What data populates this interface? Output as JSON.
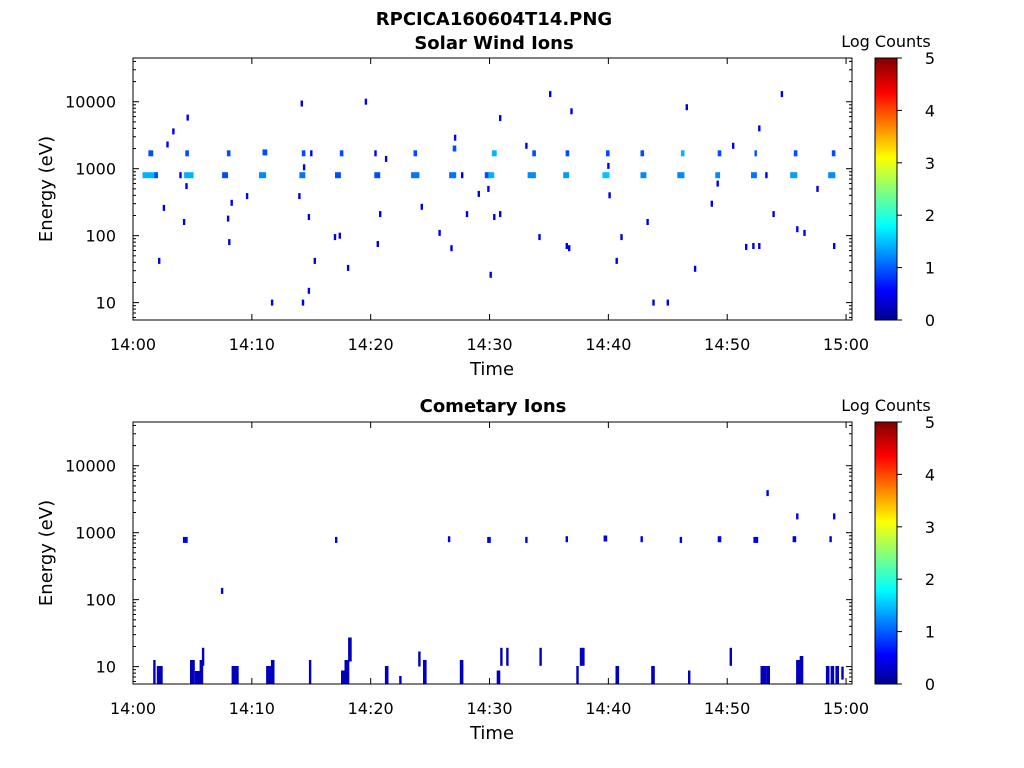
{
  "figure_title": "RPCICA160604T14.PNG",
  "chart_data": [
    {
      "type": "heatmap",
      "title": "Solar Wind Ions",
      "xlabel": "Time",
      "ylabel": "Energy (eV)",
      "x_ticks": [
        "14:00",
        "14:10",
        "14:20",
        "14:30",
        "14:40",
        "14:50",
        "15:00"
      ],
      "x_tick_minutes": [
        0,
        10,
        20,
        30,
        40,
        50,
        60
      ],
      "xlim_minutes": [
        0,
        60.5
      ],
      "y_scale": "log",
      "ylim": [
        5.5,
        45000
      ],
      "y_ticks": [
        "10",
        "100",
        "1000",
        "10000"
      ],
      "y_tick_values": [
        10,
        100,
        1000,
        10000
      ],
      "colorbar": {
        "label": "Log Counts",
        "ticks": [
          "0",
          "1",
          "2",
          "3",
          "4",
          "5"
        ],
        "range": [
          0,
          5
        ],
        "colormap": "jet"
      },
      "cells": [
        [
          0.8,
          800,
          1.1,
          1.5
        ],
        [
          1.3,
          1700,
          0.4,
          1
        ],
        [
          1.8,
          800,
          0.3,
          1
        ],
        [
          2.1,
          42,
          0.2,
          0.5
        ],
        [
          2.5,
          260,
          0.2,
          0.5
        ],
        [
          2.8,
          2300,
          0.2,
          0.5
        ],
        [
          3.3,
          3600,
          0.2,
          0.5
        ],
        [
          3.9,
          800,
          0.2,
          0.5
        ],
        [
          4.2,
          160,
          0.2,
          0.5
        ],
        [
          4.3,
          800,
          0.8,
          1.5
        ],
        [
          4.4,
          1700,
          0.3,
          1
        ],
        [
          4.5,
          5800,
          0.2,
          0.5
        ],
        [
          4.4,
          550,
          0.2,
          0.5
        ],
        [
          7.5,
          800,
          0.5,
          1
        ],
        [
          7.9,
          1700,
          0.3,
          1
        ],
        [
          7.9,
          180,
          0.2,
          0.5
        ],
        [
          8.0,
          80,
          0.2,
          0.5
        ],
        [
          8.2,
          310,
          0.2,
          0.5
        ],
        [
          9.5,
          390,
          0.2,
          0.5
        ],
        [
          10.6,
          800,
          0.6,
          1.3
        ],
        [
          10.9,
          1750,
          0.4,
          1
        ],
        [
          11.6,
          10,
          0.2,
          0.5
        ],
        [
          13.9,
          390,
          0.2,
          0.5
        ],
        [
          14.0,
          800,
          0.5,
          1.2
        ],
        [
          14.2,
          1700,
          0.3,
          1
        ],
        [
          14.1,
          9400,
          0.2,
          0.5
        ],
        [
          14.3,
          1050,
          0.2,
          0.5
        ],
        [
          14.2,
          10,
          0.2,
          0.5
        ],
        [
          14.7,
          15,
          0.2,
          0.5
        ],
        [
          14.7,
          190,
          0.2,
          0.5
        ],
        [
          14.9,
          1700,
          0.2,
          0.5
        ],
        [
          15.2,
          42,
          0.2,
          0.5
        ],
        [
          17.0,
          800,
          0.5,
          1
        ],
        [
          17.4,
          1700,
          0.3,
          1
        ],
        [
          16.9,
          95,
          0.2,
          0.5
        ],
        [
          17.3,
          100,
          0.2,
          0.5
        ],
        [
          18.0,
          33,
          0.2,
          0.5
        ],
        [
          19.5,
          10000,
          0.2,
          0.5
        ],
        [
          20.3,
          800,
          0.5,
          1
        ],
        [
          20.3,
          1700,
          0.2,
          0.5
        ],
        [
          20.5,
          75,
          0.2,
          0.5
        ],
        [
          20.7,
          210,
          0.2,
          0.5
        ],
        [
          21.2,
          1400,
          0.2,
          0.5
        ],
        [
          23.4,
          800,
          0.7,
          1.2
        ],
        [
          23.6,
          1700,
          0.3,
          1
        ],
        [
          24.2,
          270,
          0.2,
          0.5
        ],
        [
          25.7,
          110,
          0.2,
          0.5
        ],
        [
          26.6,
          800,
          0.6,
          1.2
        ],
        [
          26.9,
          2000,
          0.3,
          1
        ],
        [
          26.7,
          65,
          0.2,
          0.5
        ],
        [
          27.0,
          2900,
          0.2,
          0.5
        ],
        [
          27.6,
          800,
          0.2,
          0.5
        ],
        [
          28.0,
          210,
          0.2,
          0.5
        ],
        [
          29.0,
          420,
          0.2,
          0.5
        ],
        [
          29.6,
          800,
          0.4,
          1
        ],
        [
          29.9,
          800,
          0.5,
          1.5
        ],
        [
          30.2,
          1700,
          0.4,
          1.5
        ],
        [
          29.8,
          500,
          0.2,
          0.5
        ],
        [
          30.0,
          26,
          0.2,
          0.5
        ],
        [
          30.3,
          190,
          0.2,
          0.5
        ],
        [
          30.8,
          210,
          0.2,
          0.5
        ],
        [
          30.8,
          5700,
          0.2,
          0.5
        ],
        [
          33.2,
          800,
          0.7,
          1.3
        ],
        [
          33.0,
          2200,
          0.2,
          0.5
        ],
        [
          33.6,
          1700,
          0.3,
          1
        ],
        [
          34.1,
          95,
          0.2,
          0.5
        ],
        [
          35.0,
          13000,
          0.2,
          0.5
        ],
        [
          36.2,
          800,
          0.5,
          1.4
        ],
        [
          36.4,
          1700,
          0.3,
          1
        ],
        [
          36.4,
          70,
          0.2,
          0.5
        ],
        [
          36.6,
          65,
          0.2,
          0.5
        ],
        [
          36.8,
          7200,
          0.2,
          0.5
        ],
        [
          39.5,
          800,
          0.6,
          1.6
        ],
        [
          39.8,
          1700,
          0.3,
          1
        ],
        [
          39.9,
          1100,
          0.2,
          0.5
        ],
        [
          40.0,
          400,
          0.2,
          0.5
        ],
        [
          40.6,
          42,
          0.2,
          0.5
        ],
        [
          41.0,
          95,
          0.2,
          0.5
        ],
        [
          42.7,
          800,
          0.5,
          1.3
        ],
        [
          42.7,
          1700,
          0.3,
          1
        ],
        [
          43.2,
          160,
          0.2,
          0.5
        ],
        [
          43.7,
          10,
          0.2,
          0.5
        ],
        [
          44.9,
          10,
          0.2,
          0.5
        ],
        [
          45.8,
          800,
          0.6,
          1.3
        ],
        [
          46.1,
          1700,
          0.3,
          1.5
        ],
        [
          46.5,
          8300,
          0.2,
          0.5
        ],
        [
          47.2,
          32,
          0.2,
          0.5
        ],
        [
          48.6,
          300,
          0.2,
          0.5
        ],
        [
          49.0,
          800,
          0.4,
          1.3
        ],
        [
          49.2,
          1700,
          0.3,
          1
        ],
        [
          49.1,
          600,
          0.2,
          0.5
        ],
        [
          50.4,
          2200,
          0.2,
          0.5
        ],
        [
          51.5,
          68,
          0.2,
          0.5
        ],
        [
          52.0,
          800,
          0.5,
          1.2
        ],
        [
          52.3,
          1700,
          0.2,
          1
        ],
        [
          52.1,
          70,
          0.2,
          0.5
        ],
        [
          52.6,
          4000,
          0.2,
          0.5
        ],
        [
          52.6,
          70,
          0.2,
          0.5
        ],
        [
          53.2,
          800,
          0.2,
          0.5
        ],
        [
          53.8,
          210,
          0.2,
          0.5
        ],
        [
          54.5,
          13000,
          0.2,
          0.5
        ],
        [
          55.3,
          800,
          0.6,
          1.4
        ],
        [
          55.6,
          1700,
          0.3,
          1
        ],
        [
          55.8,
          125,
          0.2,
          0.5
        ],
        [
          56.4,
          110,
          0.2,
          0.5
        ],
        [
          57.5,
          500,
          0.2,
          0.5
        ],
        [
          58.5,
          800,
          0.6,
          1.3
        ],
        [
          58.8,
          1700,
          0.3,
          1
        ],
        [
          58.9,
          70,
          0.2,
          0.5
        ]
      ]
    },
    {
      "type": "heatmap",
      "title": "Cometary Ions",
      "xlabel": "Time",
      "ylabel": "Energy (eV)",
      "x_ticks": [
        "14:00",
        "14:10",
        "14:20",
        "14:30",
        "14:40",
        "14:50",
        "15:00"
      ],
      "x_tick_minutes": [
        0,
        10,
        20,
        30,
        40,
        50,
        60
      ],
      "xlim_minutes": [
        0,
        60.5
      ],
      "y_scale": "log",
      "ylim": [
        5.5,
        45000
      ],
      "y_ticks": [
        "10",
        "100",
        "1000",
        "10000"
      ],
      "y_tick_values": [
        10,
        100,
        1000,
        10000
      ],
      "colorbar": {
        "label": "Log Counts",
        "ticks": [
          "0",
          "1",
          "2",
          "3",
          "4",
          "5"
        ],
        "range": [
          0,
          5
        ],
        "colormap": "jet"
      },
      "cells": [
        [
          4.2,
          780,
          0.4,
          0.5
        ],
        [
          7.4,
          135,
          0.2,
          0.5
        ],
        [
          17.0,
          780,
          0.2,
          0.5
        ],
        [
          26.5,
          800,
          0.2,
          0.5
        ],
        [
          29.8,
          780,
          0.3,
          0.5
        ],
        [
          33.0,
          780,
          0.2,
          0.5
        ],
        [
          36.4,
          800,
          0.2,
          0.5
        ],
        [
          39.6,
          820,
          0.3,
          0.5
        ],
        [
          42.7,
          800,
          0.2,
          0.5
        ],
        [
          46.0,
          780,
          0.2,
          0.5
        ],
        [
          49.2,
          800,
          0.3,
          0.5
        ],
        [
          52.2,
          780,
          0.4,
          0.5
        ],
        [
          53.3,
          3900,
          0.2,
          0.5
        ],
        [
          55.5,
          800,
          0.3,
          0.5
        ],
        [
          55.8,
          1750,
          0.2,
          0.5
        ],
        [
          58.6,
          800,
          0.2,
          0.5
        ],
        [
          58.9,
          1750,
          0.2,
          0.5
        ],
        [
          1.7,
          7,
          0.2,
          0.3,
          24
        ],
        [
          2.0,
          7,
          0.5,
          0.3,
          18
        ],
        [
          4.8,
          7,
          0.4,
          0.3,
          24
        ],
        [
          5.2,
          6,
          0.5,
          0.3,
          13
        ],
        [
          5.6,
          7,
          0.3,
          0.3,
          24
        ],
        [
          5.8,
          14,
          0.2,
          0.3,
          18
        ],
        [
          8.3,
          7,
          0.6,
          0.3,
          18
        ],
        [
          11.2,
          7,
          0.6,
          0.3,
          18
        ],
        [
          11.6,
          7,
          0.3,
          0.3,
          24
        ],
        [
          14.8,
          8,
          0.2,
          0.3,
          24
        ],
        [
          17.5,
          7,
          0.3,
          0.3,
          13
        ],
        [
          17.8,
          7,
          0.4,
          0.3,
          24
        ],
        [
          18.1,
          18,
          0.3,
          0.3,
          24
        ],
        [
          21.2,
          7,
          0.3,
          0.3,
          18
        ],
        [
          22.4,
          6,
          0.2,
          0.3,
          8
        ],
        [
          24.0,
          13,
          0.2,
          0.3,
          15
        ],
        [
          24.4,
          7,
          0.3,
          0.3,
          24
        ],
        [
          27.5,
          7,
          0.3,
          0.3,
          24
        ],
        [
          30.6,
          7,
          0.3,
          0.3,
          13
        ],
        [
          30.9,
          14,
          0.2,
          0.3,
          18
        ],
        [
          31.4,
          14,
          0.2,
          0.3,
          18
        ],
        [
          34.2,
          14,
          0.2,
          0.3,
          18
        ],
        [
          37.3,
          7,
          0.2,
          0.3,
          18
        ],
        [
          37.6,
          14,
          0.4,
          0.3,
          18
        ],
        [
          40.6,
          7,
          0.3,
          0.3,
          18
        ],
        [
          43.6,
          7,
          0.3,
          0.3,
          18
        ],
        [
          46.7,
          7,
          0.2,
          0.3,
          13
        ],
        [
          50.2,
          14,
          0.2,
          0.3,
          18
        ],
        [
          52.8,
          7,
          0.5,
          0.3,
          18
        ],
        [
          53.3,
          7,
          0.3,
          0.3,
          18
        ],
        [
          55.8,
          7,
          0.4,
          0.3,
          24
        ],
        [
          56.1,
          7,
          0.3,
          0.3,
          28
        ],
        [
          58.3,
          7,
          0.3,
          0.3,
          18
        ],
        [
          58.7,
          7,
          0.3,
          0.3,
          18
        ],
        [
          59.1,
          7,
          0.3,
          0.3,
          18
        ],
        [
          59.6,
          8,
          0.2,
          0.3,
          13
        ]
      ]
    }
  ]
}
